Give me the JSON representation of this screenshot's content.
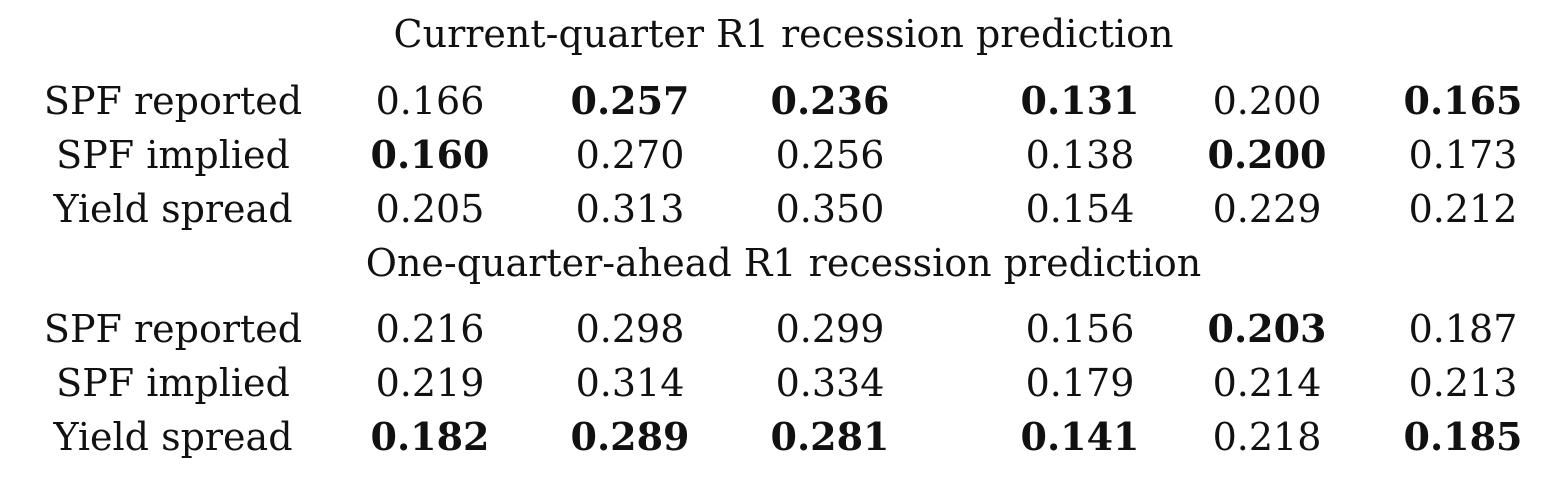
{
  "panels": [
    {
      "title": "Current-quarter R1 recession prediction",
      "rows": [
        {
          "label": "SPF reported",
          "values": [
            "0.166",
            "0.257",
            "0.236",
            "0.131",
            "0.200",
            "0.165"
          ],
          "bold": [
            false,
            true,
            true,
            true,
            false,
            true
          ]
        },
        {
          "label": "SPF implied",
          "values": [
            "0.160",
            "0.270",
            "0.256",
            "0.138",
            "0.200",
            "0.173"
          ],
          "bold": [
            true,
            false,
            false,
            false,
            true,
            false
          ]
        },
        {
          "label": "Yield spread",
          "values": [
            "0.205",
            "0.313",
            "0.350",
            "0.154",
            "0.229",
            "0.212"
          ],
          "bold": [
            false,
            false,
            false,
            false,
            false,
            false
          ]
        }
      ]
    },
    {
      "title": "One-quarter-ahead R1 recession prediction",
      "rows": [
        {
          "label": "SPF reported",
          "values": [
            "0.216",
            "0.298",
            "0.299",
            "0.156",
            "0.203",
            "0.187"
          ],
          "bold": [
            false,
            false,
            false,
            false,
            true,
            false
          ]
        },
        {
          "label": "SPF implied",
          "values": [
            "0.219",
            "0.314",
            "0.334",
            "0.179",
            "0.214",
            "0.213"
          ],
          "bold": [
            false,
            false,
            false,
            false,
            false,
            false
          ]
        },
        {
          "label": "Yield spread",
          "values": [
            "0.182",
            "0.289",
            "0.281",
            "0.141",
            "0.218",
            "0.185"
          ],
          "bold": [
            true,
            true,
            true,
            true,
            false,
            true
          ]
        }
      ]
    }
  ]
}
